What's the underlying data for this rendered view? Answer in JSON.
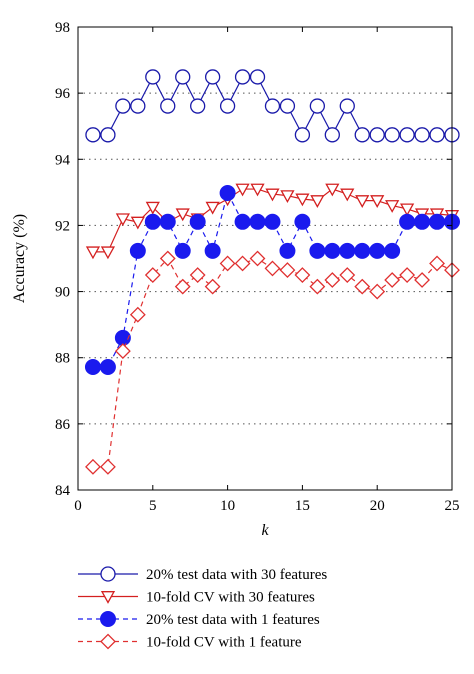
{
  "chart_data": {
    "type": "line",
    "title": "",
    "xlabel": "k",
    "ylabel": "Accuracy (%)",
    "xlim": [
      0,
      25
    ],
    "ylim": [
      84,
      98
    ],
    "xticks": [
      0,
      5,
      10,
      15,
      20,
      25
    ],
    "yticks": [
      84,
      86,
      88,
      90,
      92,
      94,
      96,
      98
    ],
    "grid": "dotted horizontal",
    "legend_position": "bottom",
    "x": [
      1,
      2,
      3,
      4,
      5,
      6,
      7,
      8,
      9,
      10,
      11,
      12,
      13,
      14,
      15,
      16,
      17,
      18,
      19,
      20,
      21,
      22,
      23,
      24,
      25
    ],
    "series": [
      {
        "name": "20% test data with 30 features",
        "color": "#1a1aaa",
        "line": "solid",
        "marker": "open-circle",
        "values": [
          94.74,
          94.74,
          95.61,
          95.61,
          96.49,
          95.61,
          96.49,
          95.61,
          96.49,
          95.61,
          96.49,
          96.49,
          95.61,
          95.61,
          94.74,
          95.61,
          94.74,
          95.61,
          94.74,
          94.74,
          94.74,
          94.74,
          94.74,
          94.74,
          94.74
        ]
      },
      {
        "name": "10-fold CV with 30 features",
        "color": "#d42020",
        "line": "solid",
        "marker": "down-triangle",
        "values": [
          91.2,
          91.2,
          92.2,
          92.1,
          92.55,
          92.1,
          92.35,
          92.2,
          92.55,
          92.8,
          93.1,
          93.1,
          92.95,
          92.9,
          92.8,
          92.75,
          93.1,
          92.95,
          92.75,
          92.75,
          92.6,
          92.5,
          92.35,
          92.35,
          92.3
        ]
      },
      {
        "name": "20% test data with 1 features",
        "color": "#1a1aee",
        "line": "dashed",
        "marker": "filled-circle",
        "values": [
          87.72,
          87.72,
          88.6,
          91.23,
          92.11,
          92.11,
          91.23,
          92.11,
          91.23,
          92.98,
          92.11,
          92.11,
          92.11,
          91.23,
          92.11,
          91.23,
          91.23,
          91.23,
          91.23,
          91.23,
          91.23,
          92.11,
          92.11,
          92.11,
          92.11
        ]
      },
      {
        "name": "10-fold CV with 1 feature",
        "color": "#e03030",
        "line": "dashed",
        "marker": "open-diamond",
        "values": [
          84.7,
          84.7,
          88.2,
          89.3,
          90.5,
          91.0,
          90.15,
          90.5,
          90.15,
          90.85,
          90.85,
          91.0,
          90.7,
          90.65,
          90.5,
          90.15,
          90.35,
          90.5,
          90.15,
          90.0,
          90.35,
          90.5,
          90.35,
          90.85,
          90.65
        ]
      }
    ]
  }
}
